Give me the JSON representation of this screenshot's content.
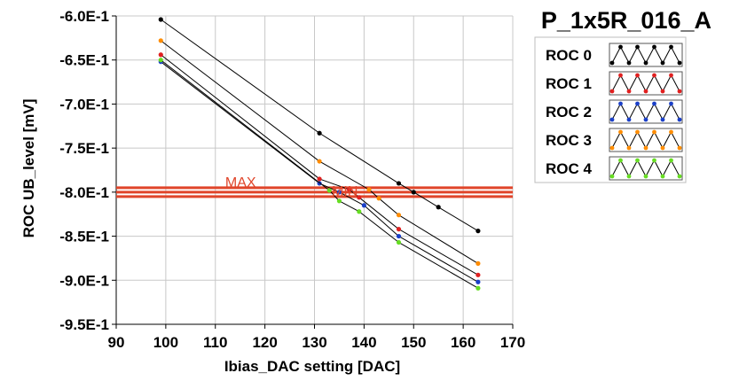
{
  "chart_data": {
    "type": "line",
    "title": "P_1x5R_016_A",
    "xlabel": "Ibias_DAC setting [DAC]",
    "ylabel": "ROC UB_level [mV]",
    "xlim": [
      90,
      170
    ],
    "ylim": [
      -0.95,
      -0.6
    ],
    "xticks": [
      90,
      100,
      110,
      120,
      130,
      140,
      150,
      160,
      170
    ],
    "xtick_labels": [
      "90",
      "100",
      "110",
      "120",
      "130",
      "140",
      "150",
      "160",
      "170"
    ],
    "yticks": [
      -0.6,
      -0.65,
      -0.7,
      -0.75,
      -0.8,
      -0.85,
      -0.9,
      -0.95
    ],
    "ytick_labels": [
      "-6.0E-1",
      "-6.5E-1",
      "-7.0E-1",
      "-7.5E-1",
      "-8.0E-1",
      "-8.5E-1",
      "-9.0E-1",
      "-9.5E-1"
    ],
    "grid": true,
    "legend_position": "right",
    "series": [
      {
        "name": "ROC 0",
        "color": "#000000",
        "x": [
          99,
          131,
          147,
          150,
          155,
          163
        ],
        "y": [
          -0.604,
          -0.733,
          -0.79,
          -0.8,
          -0.817,
          -0.844
        ]
      },
      {
        "name": "ROC 1",
        "color": "#e02020",
        "x": [
          99,
          131,
          137,
          139,
          147,
          163
        ],
        "y": [
          -0.644,
          -0.785,
          -0.797,
          -0.806,
          -0.842,
          -0.894
        ]
      },
      {
        "name": "ROC 2",
        "color": "#1a3fc8",
        "x": [
          99,
          131,
          135,
          140,
          147,
          163
        ],
        "y": [
          -0.652,
          -0.79,
          -0.8,
          -0.815,
          -0.85,
          -0.902
        ]
      },
      {
        "name": "ROC 3",
        "color": "#ff8c00",
        "x": [
          99,
          131,
          141,
          143,
          147,
          163
        ],
        "y": [
          -0.628,
          -0.765,
          -0.797,
          -0.807,
          -0.826,
          -0.881
        ]
      },
      {
        "name": "ROC 4",
        "color": "#66dd22",
        "x": [
          99,
          133,
          135,
          139,
          147,
          163
        ],
        "y": [
          -0.65,
          -0.798,
          -0.81,
          -0.822,
          -0.857,
          -0.909
        ]
      }
    ],
    "limit_lines": [
      {
        "label": "MAX",
        "y": -0.795,
        "color": "#e0452a"
      },
      {
        "label": "MIN",
        "y": -0.805,
        "color": "#e0452a"
      }
    ],
    "limit_line_extra_y": [
      -0.8
    ],
    "label_x": {
      "MAX": 112,
      "MIN": 133.5
    }
  }
}
